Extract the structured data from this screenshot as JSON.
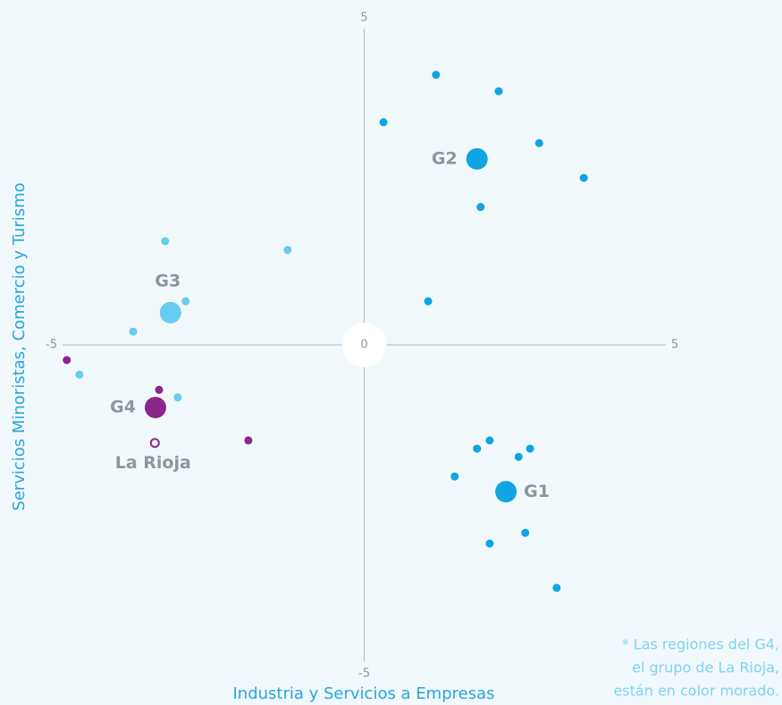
{
  "chart_data": {
    "type": "scatter",
    "xlabel": "Industria y Servicios a Empresas",
    "ylabel": "Servicios Minoristas, Comercio y Turismo",
    "xlim": [
      -5,
      5
    ],
    "ylim": [
      -5,
      5
    ],
    "xticks": [
      -5,
      0,
      5
    ],
    "yticks": [
      -5,
      5
    ],
    "series": [
      {
        "name": "G1",
        "color": "#0ea5e2",
        "x": [
          1.5,
          1.87,
          2.08,
          2.56,
          2.75,
          2.08,
          2.67,
          3.19
        ],
        "y": [
          -2.08,
          -1.64,
          -1.51,
          -1.77,
          -1.64,
          -3.14,
          -2.97,
          -3.84
        ],
        "centroid": {
          "x": 2.35,
          "y": -2.32
        }
      },
      {
        "name": "G2",
        "color": "#0ea5e2",
        "x": [
          1.19,
          2.23,
          0.32,
          2.9,
          3.64,
          1.93,
          1.06
        ],
        "y": [
          4.27,
          4.01,
          3.52,
          3.19,
          2.64,
          2.18,
          0.69
        ],
        "centroid": {
          "x": 1.87,
          "y": 2.94
        }
      },
      {
        "name": "G3",
        "color": "#66ccf0",
        "x": [
          -3.3,
          -1.27,
          -2.96,
          -3.83,
          -4.72,
          -3.09
        ],
        "y": [
          1.64,
          1.5,
          0.69,
          0.21,
          -0.47,
          -0.83
        ],
        "centroid": {
          "x": -3.21,
          "y": 0.51
        }
      },
      {
        "name": "G4",
        "color": "#8b268b",
        "x": [
          -4.93,
          -3.4,
          -1.92
        ],
        "y": [
          -0.24,
          -0.71,
          -1.51
        ],
        "centroid": {
          "x": -3.46,
          "y": -0.99
        }
      }
    ],
    "highlight": {
      "name": "La Rioja",
      "color": "#8b268b",
      "x": -3.47,
      "y": -1.55
    },
    "note": [
      "* Las regiones del G4,",
      "el grupo de La Rioja,",
      "están en color morado."
    ]
  }
}
